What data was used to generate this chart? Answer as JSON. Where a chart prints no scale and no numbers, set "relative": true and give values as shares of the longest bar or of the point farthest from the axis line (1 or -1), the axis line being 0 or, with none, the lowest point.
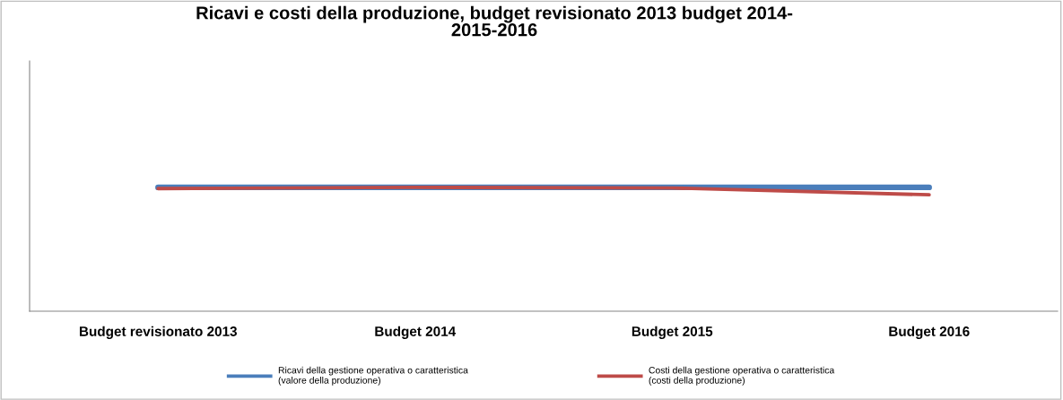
{
  "chart_data": {
    "type": "line",
    "title": "Ricavi e costi della produzione, budget revisionato 2013 budget 2014-\n2015-2016",
    "categories": [
      "Budget revisionato 2013",
      "Budget 2014",
      "Budget 2015",
      "Budget 2016"
    ],
    "relative": true,
    "series": [
      {
        "name": "Ricavi della gestione operativa o caratteristica\n(valore della produzione)",
        "color": "#4a7ebb",
        "values": [
          1,
          1,
          1,
          1
        ]
      },
      {
        "name": "Costi della gestione operativa o caratteristica\n(costi della produzione)",
        "color": "#be4b48",
        "values": [
          0.99,
          1,
          0.995,
          0.94
        ]
      }
    ],
    "legend": "bottom",
    "grid": false,
    "marker": "none",
    "line_style": "solid"
  }
}
